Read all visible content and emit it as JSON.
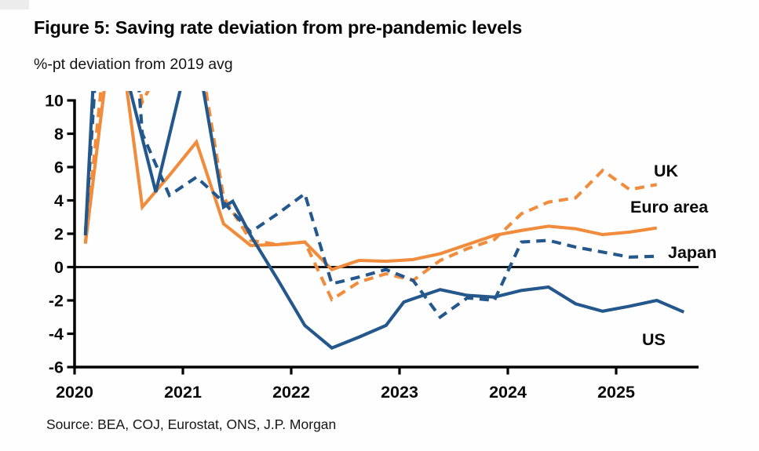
{
  "header": {
    "title": "Figure 5: Saving rate deviation from pre-pandemic levels",
    "subtitle": "%-pt deviation from 2019 avg"
  },
  "source": "Source: BEA, COJ, Eurostat, ONS, J.P. Morgan",
  "series_labels": {
    "uk": "UK",
    "euro": "Euro area",
    "japan": "Japan",
    "us": "US"
  },
  "colors": {
    "orange": "#F08C3C",
    "blue": "#24578B",
    "axis": "#000000",
    "text": "#0a0a0a"
  },
  "chart_data": {
    "type": "line",
    "title": "Figure 5: Saving rate deviation from pre-pandemic levels",
    "xlabel": "",
    "ylabel": "%-pt deviation from 2019 avg",
    "xlim": [
      2020.0,
      2025.77
    ],
    "ylim": [
      -6,
      10
    ],
    "grid": false,
    "legend_position": "inline-right-labels",
    "x_ticks": [
      2020,
      2021,
      2022,
      2023,
      2024,
      2025
    ],
    "y_ticks": [
      10,
      8,
      6,
      4,
      2,
      0,
      -2,
      -4,
      -6
    ],
    "zero_line": 0,
    "note": "Values above 10 are clipped at the top of the plot; x values are decimal years (quarterly points).",
    "series": [
      {
        "name": "Euro area",
        "color": "#F08C3C",
        "style": "solid",
        "points": [
          [
            2020.1,
            1.4
          ],
          [
            2020.375,
            16
          ],
          [
            2020.625,
            3.6
          ],
          [
            2020.875,
            5.5
          ],
          [
            2021.125,
            7.5
          ],
          [
            2021.375,
            2.6
          ],
          [
            2021.625,
            1.3
          ],
          [
            2021.875,
            1.35
          ],
          [
            2022.125,
            1.5
          ],
          [
            2022.375,
            -0.15
          ],
          [
            2022.625,
            0.4
          ],
          [
            2022.875,
            0.35
          ],
          [
            2023.125,
            0.45
          ],
          [
            2023.375,
            0.8
          ],
          [
            2023.625,
            1.35
          ],
          [
            2023.875,
            1.9
          ],
          [
            2024.125,
            2.2
          ],
          [
            2024.375,
            2.45
          ],
          [
            2024.625,
            2.3
          ],
          [
            2024.875,
            1.95
          ],
          [
            2025.125,
            2.1
          ],
          [
            2025.375,
            2.35
          ]
        ]
      },
      {
        "name": "UK",
        "color": "#F08C3C",
        "style": "dashed",
        "points": [
          [
            2020.1,
            1.5
          ],
          [
            2020.375,
            19
          ],
          [
            2020.625,
            9.9
          ],
          [
            2020.875,
            13
          ],
          [
            2021.125,
            14
          ],
          [
            2021.375,
            4.2
          ],
          [
            2021.625,
            1.6
          ],
          [
            2021.875,
            1.35
          ],
          [
            2022.125,
            1.5
          ],
          [
            2022.375,
            -1.95
          ],
          [
            2022.625,
            -0.9
          ],
          [
            2022.875,
            -0.4
          ],
          [
            2023.125,
            -0.8
          ],
          [
            2023.375,
            0.4
          ],
          [
            2023.625,
            1.1
          ],
          [
            2023.875,
            1.65
          ],
          [
            2024.125,
            3.2
          ],
          [
            2024.375,
            3.9
          ],
          [
            2024.625,
            4.15
          ],
          [
            2024.875,
            5.8
          ],
          [
            2025.125,
            4.65
          ],
          [
            2025.375,
            4.95
          ]
        ]
      },
      {
        "name": "Japan",
        "color": "#24578B",
        "style": "dashed",
        "points": [
          [
            2020.1,
            2.0
          ],
          [
            2020.375,
            30
          ],
          [
            2020.625,
            8.0
          ],
          [
            2020.875,
            4.3
          ],
          [
            2021.125,
            5.4
          ],
          [
            2021.375,
            3.9
          ],
          [
            2021.625,
            2.1
          ],
          [
            2021.875,
            3.2
          ],
          [
            2022.125,
            4.4
          ],
          [
            2022.375,
            -1.0
          ],
          [
            2022.625,
            -0.6
          ],
          [
            2022.875,
            -0.15
          ],
          [
            2023.125,
            -0.8
          ],
          [
            2023.375,
            -3.0
          ],
          [
            2023.625,
            -1.85
          ],
          [
            2023.875,
            -2.0
          ],
          [
            2024.125,
            1.5
          ],
          [
            2024.375,
            1.6
          ],
          [
            2024.625,
            1.2
          ],
          [
            2024.875,
            0.9
          ],
          [
            2025.125,
            0.6
          ],
          [
            2025.375,
            0.65
          ]
        ]
      },
      {
        "name": "US",
        "color": "#24578B",
        "style": "solid",
        "points": [
          [
            2020.1,
            1.9
          ],
          [
            2020.29,
            26
          ],
          [
            2020.46,
            12
          ],
          [
            2020.75,
            4.5
          ],
          [
            2021.1,
            14
          ],
          [
            2021.375,
            3.6
          ],
          [
            2021.46,
            3.95
          ],
          [
            2021.625,
            1.9
          ],
          [
            2021.875,
            -0.75
          ],
          [
            2022.125,
            -3.5
          ],
          [
            2022.375,
            -4.85
          ],
          [
            2022.625,
            -4.2
          ],
          [
            2022.875,
            -3.5
          ],
          [
            2023.04,
            -2.1
          ],
          [
            2023.125,
            -1.9
          ],
          [
            2023.375,
            -1.35
          ],
          [
            2023.625,
            -1.7
          ],
          [
            2023.875,
            -1.8
          ],
          [
            2024.125,
            -1.4
          ],
          [
            2024.375,
            -1.2
          ],
          [
            2024.625,
            -2.2
          ],
          [
            2024.875,
            -2.65
          ],
          [
            2025.125,
            -2.35
          ],
          [
            2025.375,
            -2.0
          ],
          [
            2025.625,
            -2.7
          ]
        ]
      }
    ]
  }
}
